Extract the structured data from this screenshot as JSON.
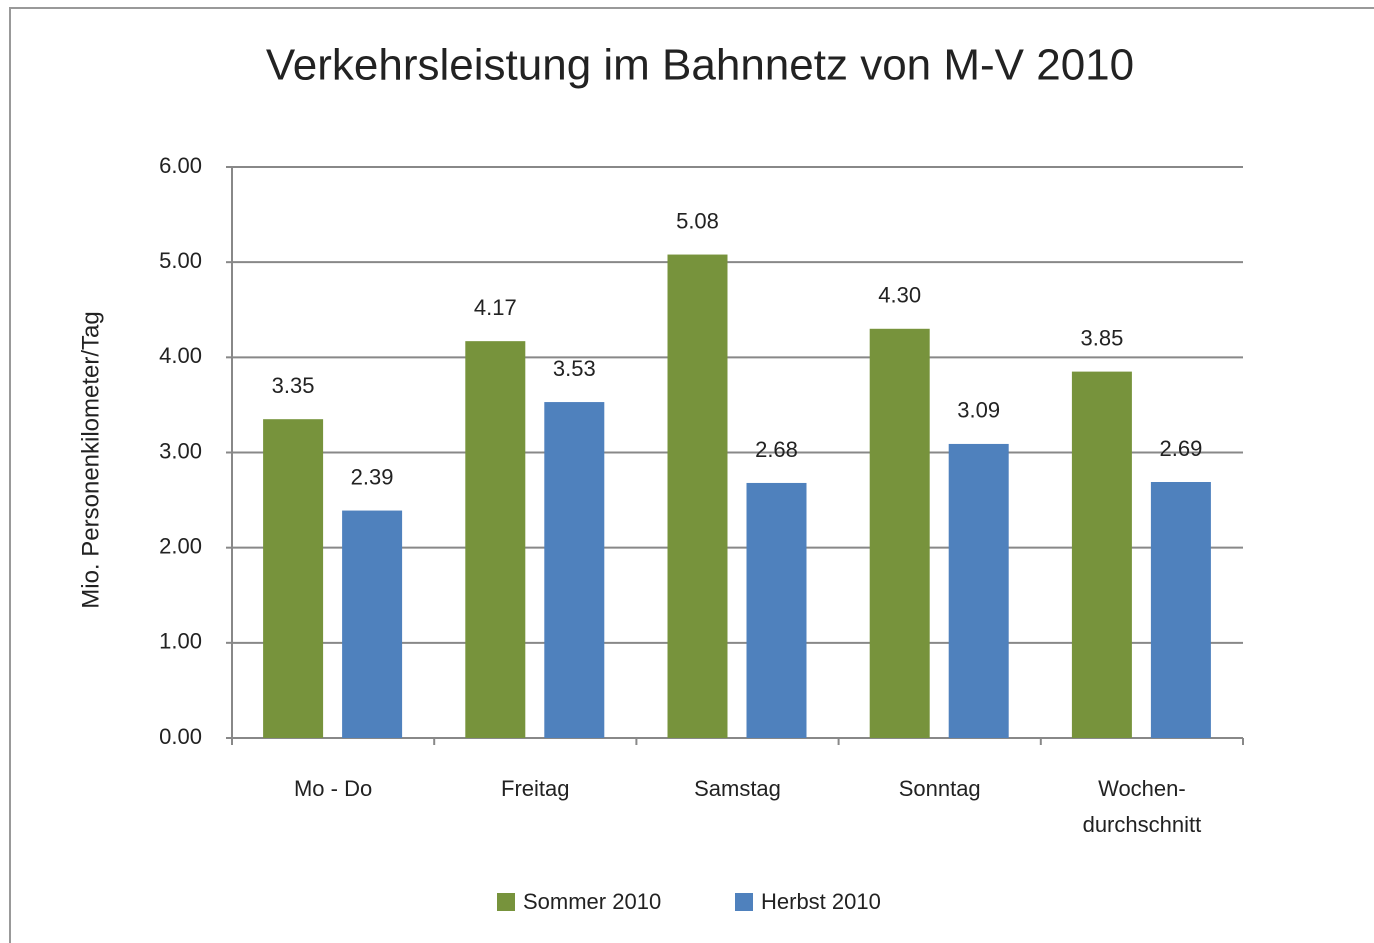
{
  "chart_data": {
    "type": "bar",
    "title": "Verkehrsleistung im Bahnnetz von M-V 2010",
    "y_label": "Mio. Personenkilometer/Tag",
    "categories": [
      "Mo - Do",
      "Freitag",
      "Samstag",
      "Sonntag",
      "Wochen-\ndurchschnitt"
    ],
    "series": [
      {
        "name": "Sommer 2010",
        "color": "#77933c",
        "values": [
          3.35,
          4.17,
          5.08,
          4.3,
          3.85
        ],
        "value_labels": [
          "3.35",
          "4.17",
          "5.08",
          "4.30",
          "3.85"
        ]
      },
      {
        "name": "Herbst 2010",
        "color": "#4f81bd",
        "values": [
          2.39,
          3.53,
          2.68,
          3.09,
          2.69
        ],
        "value_labels": [
          "2.39",
          "3.53",
          "2.68",
          "3.09",
          "2.69"
        ]
      }
    ],
    "ylim": [
      0,
      6
    ],
    "yticks": [
      {
        "value": 0,
        "label": "0.00"
      },
      {
        "value": 1,
        "label": "1.00"
      },
      {
        "value": 2,
        "label": "2.00"
      },
      {
        "value": 3,
        "label": "3.00"
      },
      {
        "value": 4,
        "label": "4.00"
      },
      {
        "value": 5,
        "label": "5.00"
      },
      {
        "value": 6,
        "label": "6.00"
      }
    ],
    "grid": true,
    "legend": "bottom"
  }
}
